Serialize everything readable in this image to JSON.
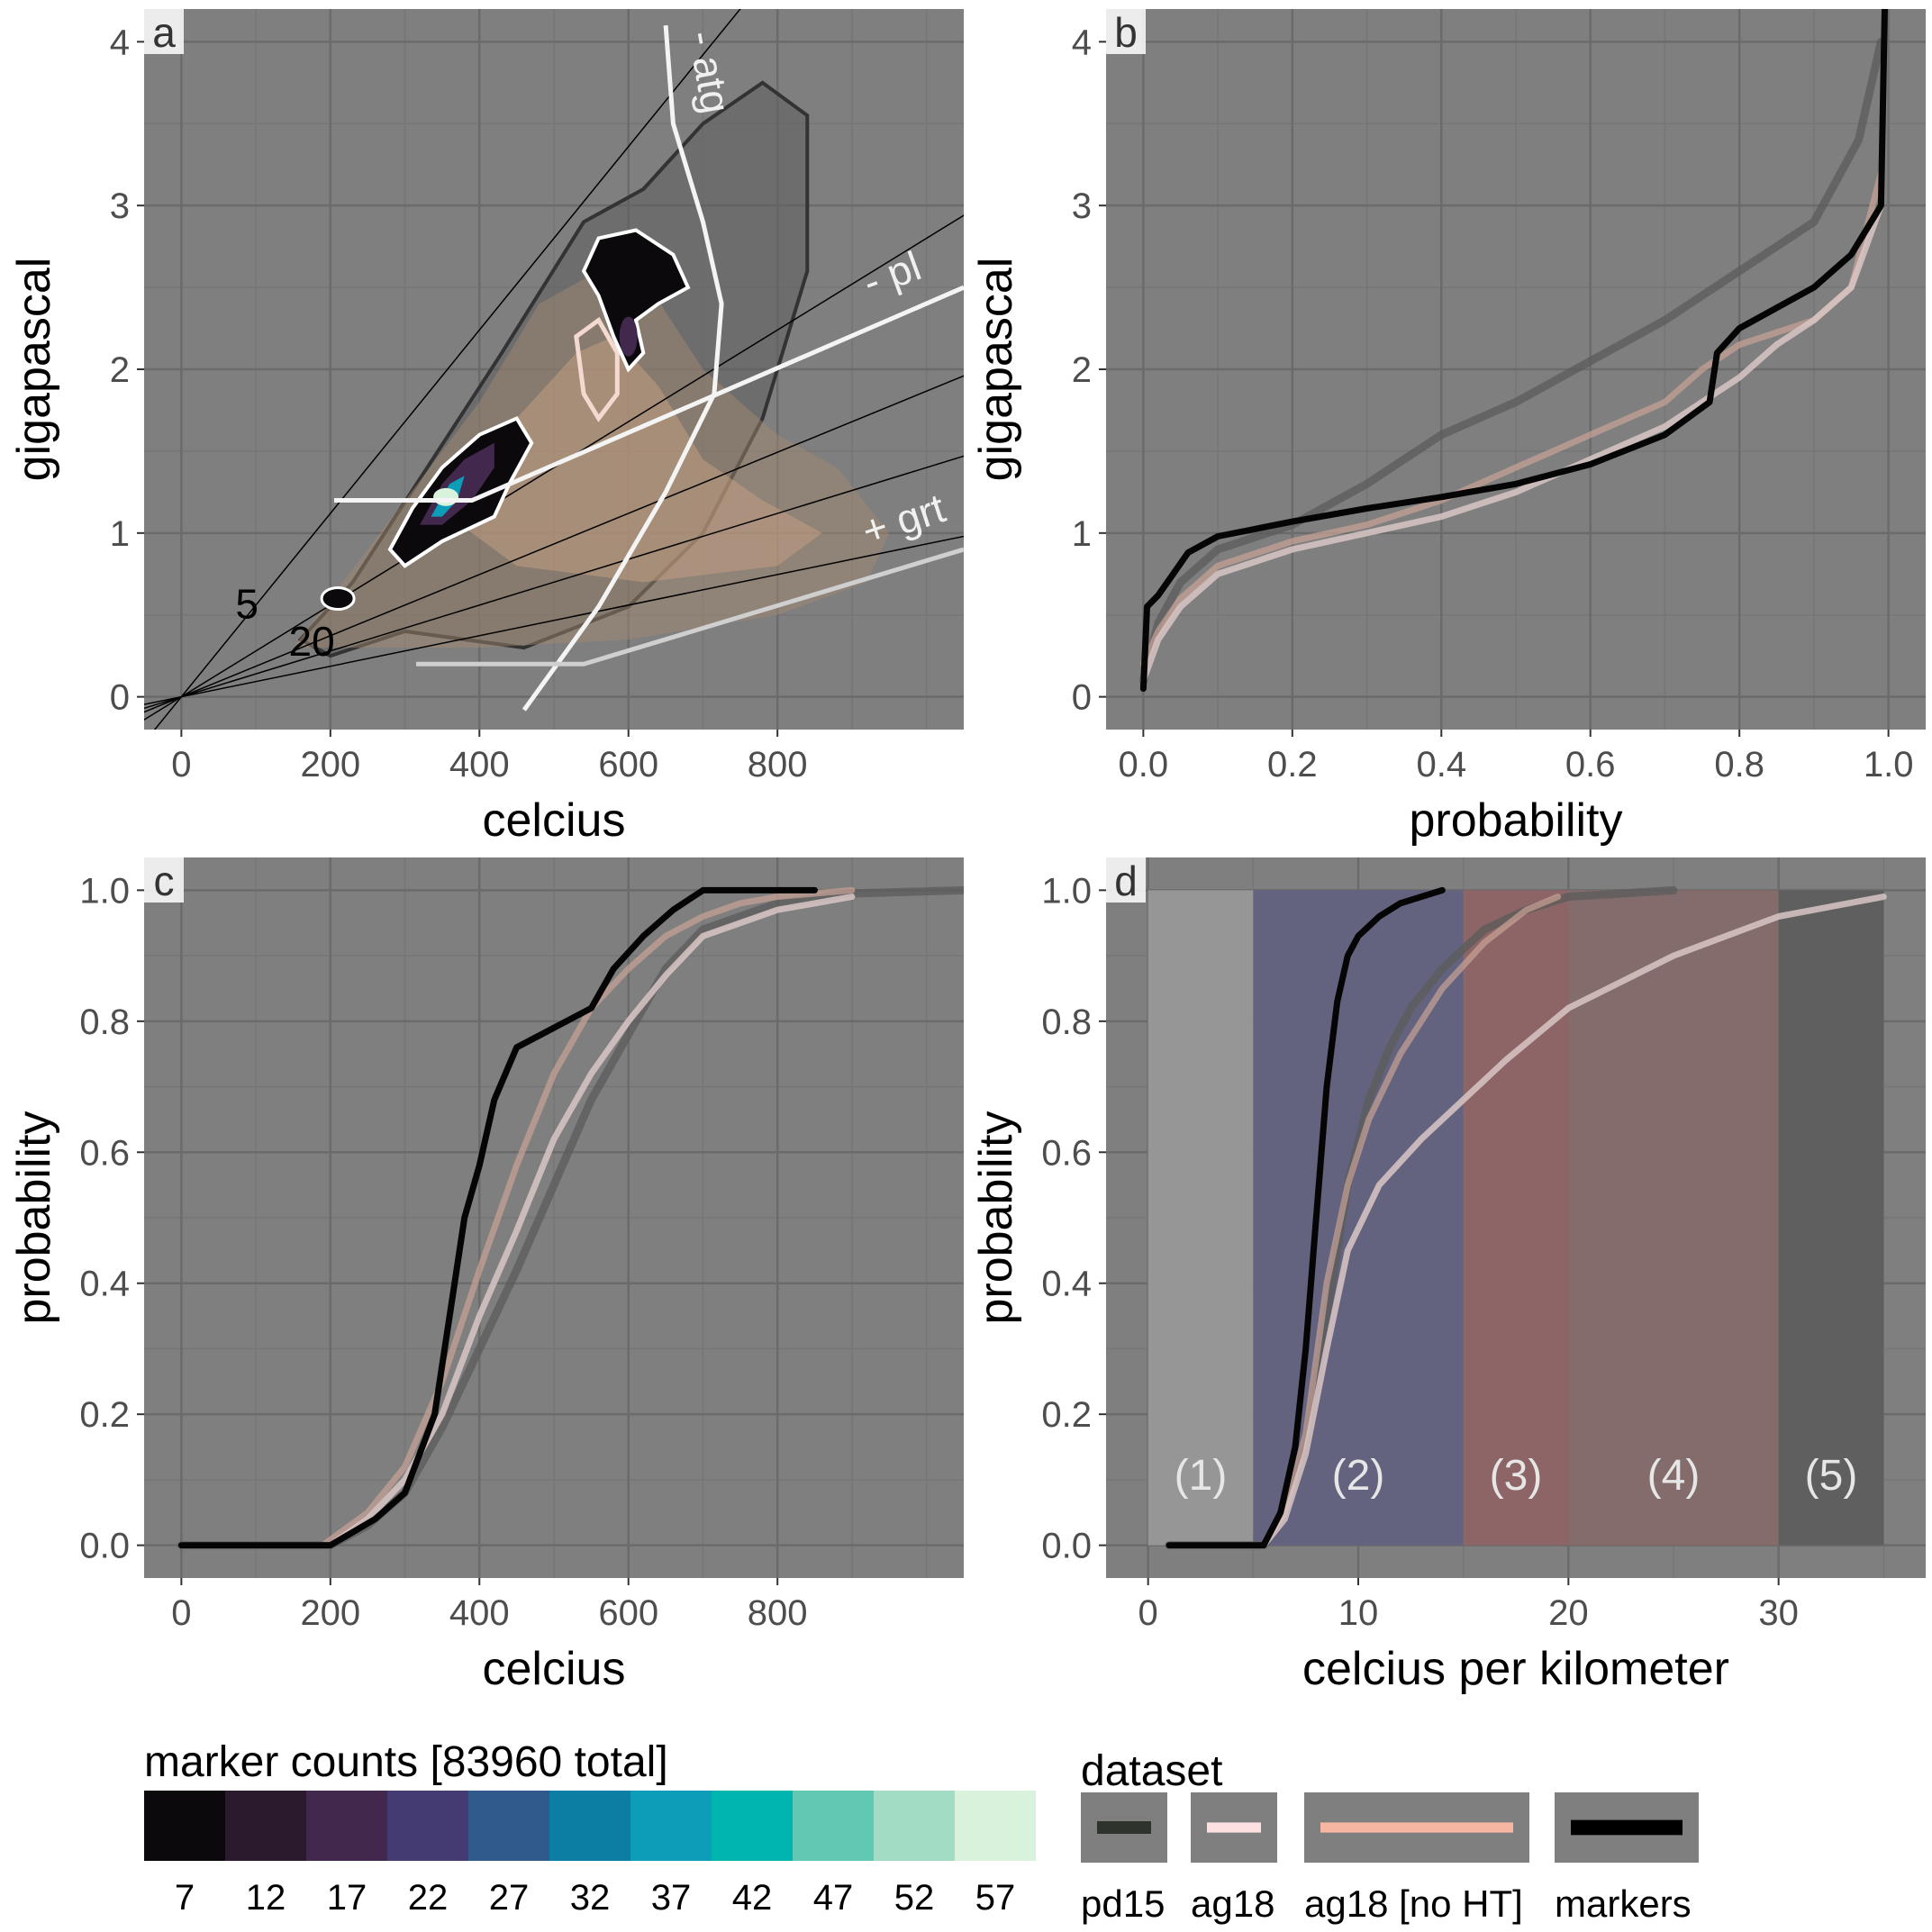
{
  "chart_data": [
    {
      "panel": "a",
      "type": "scatter",
      "xlabel": "celcius",
      "ylabel": "gigapascal",
      "xlim": [
        -50,
        1050
      ],
      "ylim": [
        -0.2,
        4.2
      ],
      "xticks": [
        "0",
        "200",
        "400",
        "600",
        "800"
      ],
      "xtick_values": [
        0,
        200,
        400,
        600,
        800
      ],
      "yticks": [
        "0",
        "1",
        "2",
        "3",
        "4"
      ],
      "ytick_values": [
        0,
        1,
        2,
        3,
        4
      ],
      "annotations": [
        {
          "text": "- atg",
          "x": 690,
          "y": 3.8
        },
        {
          "text": "- pl",
          "x": 960,
          "y": 2.5
        },
        {
          "text": "+ grt",
          "x": 975,
          "y": 1.0
        },
        {
          "text": "5",
          "x": 88,
          "y": 0.48
        },
        {
          "text": "20",
          "x": 175,
          "y": 0.25
        }
      ],
      "gradient_lines_c_per_km": [
        5,
        10,
        15,
        20,
        30
      ],
      "reaction_curves": [
        {
          "name": "- atg",
          "points": [
            [
              460,
              -0.08
            ],
            [
              560,
              0.55
            ],
            [
              650,
              1.25
            ],
            [
              715,
              1.85
            ],
            [
              725,
              2.4
            ],
            [
              700,
              2.9
            ],
            [
              660,
              3.5
            ],
            [
              650,
              4.1
            ]
          ]
        },
        {
          "name": "- pl",
          "points": [
            [
              205,
              1.2
            ],
            [
              390,
              1.2
            ],
            [
              720,
              1.85
            ],
            [
              1050,
              2.5
            ]
          ]
        },
        {
          "name": "+ grt",
          "points": [
            [
              315,
              0.2
            ],
            [
              540,
              0.2
            ],
            [
              1050,
              0.9
            ]
          ]
        }
      ],
      "marker_density_peaks": [
        {
          "x": 360,
          "y": 1.25,
          "count": 57
        },
        {
          "x": 600,
          "y": 2.35,
          "count": 22
        },
        {
          "x": 210,
          "y": 0.6,
          "count": 12
        }
      ]
    },
    {
      "panel": "b",
      "type": "line",
      "xlabel": "probability",
      "ylabel": "gigapascal",
      "xlim": [
        -0.05,
        1.05
      ],
      "ylim": [
        -0.2,
        4.2
      ],
      "xticks": [
        "0.0",
        "0.2",
        "0.4",
        "0.6",
        "0.8",
        "1.0"
      ],
      "xtick_values": [
        0,
        0.2,
        0.4,
        0.6,
        0.8,
        1.0
      ],
      "yticks": [
        "0",
        "1",
        "2",
        "3",
        "4"
      ],
      "ytick_values": [
        0,
        1,
        2,
        3,
        4
      ],
      "series": [
        {
          "key": "pd15",
          "x": [
            0,
            0.02,
            0.05,
            0.1,
            0.2,
            0.3,
            0.4,
            0.5,
            0.6,
            0.7,
            0.8,
            0.9,
            0.96,
            0.99
          ],
          "y": [
            0.1,
            0.45,
            0.7,
            0.9,
            1.05,
            1.3,
            1.6,
            1.8,
            2.05,
            2.3,
            2.6,
            2.9,
            3.4,
            4.0
          ]
        },
        {
          "key": "ag18",
          "x": [
            0,
            0.02,
            0.05,
            0.1,
            0.2,
            0.3,
            0.4,
            0.5,
            0.6,
            0.7,
            0.8,
            0.85,
            0.9,
            0.95,
            0.99
          ],
          "y": [
            0.1,
            0.35,
            0.55,
            0.75,
            0.9,
            1.0,
            1.1,
            1.25,
            1.45,
            1.65,
            1.95,
            2.15,
            2.3,
            2.5,
            3.0
          ]
        },
        {
          "key": "ag18nht",
          "x": [
            0,
            0.02,
            0.05,
            0.1,
            0.2,
            0.3,
            0.4,
            0.5,
            0.6,
            0.7,
            0.75,
            0.8,
            0.9,
            0.95,
            0.99
          ],
          "y": [
            0.2,
            0.4,
            0.6,
            0.8,
            0.95,
            1.05,
            1.2,
            1.4,
            1.6,
            1.8,
            2.0,
            2.15,
            2.3,
            2.5,
            3.2
          ]
        },
        {
          "key": "markers",
          "x": [
            0,
            0.005,
            0.02,
            0.04,
            0.06,
            0.1,
            0.2,
            0.3,
            0.4,
            0.5,
            0.6,
            0.7,
            0.76,
            0.77,
            0.8,
            0.9,
            0.95,
            0.99,
            0.995
          ],
          "y": [
            0.05,
            0.55,
            0.62,
            0.75,
            0.88,
            0.98,
            1.07,
            1.15,
            1.22,
            1.3,
            1.42,
            1.6,
            1.8,
            2.1,
            2.25,
            2.5,
            2.7,
            3.0,
            4.2
          ]
        }
      ]
    },
    {
      "panel": "c",
      "type": "line",
      "xlabel": "celcius",
      "ylabel": "probability",
      "xlim": [
        -50,
        1050
      ],
      "ylim": [
        -0.05,
        1.05
      ],
      "xticks": [
        "0",
        "200",
        "400",
        "600",
        "800"
      ],
      "xtick_values": [
        0,
        200,
        400,
        600,
        800
      ],
      "yticks": [
        "0.0",
        "0.2",
        "0.4",
        "0.6",
        "0.8",
        "1.0"
      ],
      "ytick_values": [
        0,
        0.2,
        0.4,
        0.6,
        0.8,
        1.0
      ],
      "series": [
        {
          "key": "pd15",
          "x": [
            0,
            200,
            250,
            300,
            350,
            400,
            450,
            500,
            550,
            600,
            650,
            700,
            800,
            900,
            1050
          ],
          "y": [
            0,
            0,
            0.03,
            0.08,
            0.18,
            0.3,
            0.42,
            0.55,
            0.68,
            0.78,
            0.88,
            0.94,
            0.98,
            0.995,
            1.0
          ]
        },
        {
          "key": "ag18",
          "x": [
            0,
            200,
            250,
            300,
            350,
            400,
            450,
            500,
            550,
            600,
            650,
            700,
            800,
            900
          ],
          "y": [
            0,
            0,
            0.04,
            0.1,
            0.2,
            0.35,
            0.48,
            0.62,
            0.72,
            0.8,
            0.87,
            0.93,
            0.97,
            0.99
          ]
        },
        {
          "key": "ag18nht",
          "x": [
            0,
            190,
            250,
            300,
            350,
            400,
            450,
            500,
            550,
            600,
            650,
            700,
            750,
            800,
            900
          ],
          "y": [
            0,
            0,
            0.05,
            0.12,
            0.25,
            0.42,
            0.58,
            0.72,
            0.82,
            0.88,
            0.93,
            0.96,
            0.98,
            0.99,
            1.0
          ]
        },
        {
          "key": "markers",
          "x": [
            0,
            200,
            230,
            260,
            300,
            340,
            360,
            380,
            400,
            420,
            450,
            500,
            550,
            580,
            620,
            660,
            700,
            850
          ],
          "y": [
            0,
            0,
            0.02,
            0.04,
            0.08,
            0.2,
            0.35,
            0.5,
            0.58,
            0.68,
            0.76,
            0.79,
            0.82,
            0.88,
            0.93,
            0.97,
            1.0,
            1.0
          ]
        }
      ]
    },
    {
      "panel": "d",
      "type": "line",
      "xlabel": "celcius per kilometer",
      "ylabel": "probability",
      "xlim": [
        -2,
        37
      ],
      "ylim": [
        -0.05,
        1.05
      ],
      "xticks": [
        "0",
        "10",
        "20",
        "30"
      ],
      "xtick_values": [
        0,
        10,
        20,
        30
      ],
      "yticks": [
        "0.0",
        "0.2",
        "0.4",
        "0.6",
        "0.8",
        "1.0"
      ],
      "ytick_values": [
        0,
        0.2,
        0.4,
        0.6,
        0.8,
        1.0
      ],
      "bands": [
        {
          "label": "(1)",
          "x0": 0,
          "x1": 5,
          "color": "#969696"
        },
        {
          "label": "(2)",
          "x0": 5,
          "x1": 15,
          "color": "#63637f"
        },
        {
          "label": "(3)",
          "x0": 15,
          "x1": 20,
          "color": "#8e6566"
        },
        {
          "label": "(4)",
          "x0": 20,
          "x1": 30,
          "color": "#846b6c"
        },
        {
          "label": "(5)",
          "x0": 30,
          "x1": 35,
          "color": "#5f5f5f"
        }
      ],
      "series": [
        {
          "key": "pd15",
          "x": [
            1,
            5.5,
            6.5,
            7.5,
            8.5,
            9.5,
            10.5,
            11.5,
            12.5,
            14,
            16,
            18,
            20,
            25
          ],
          "y": [
            0,
            0,
            0.05,
            0.15,
            0.35,
            0.55,
            0.68,
            0.76,
            0.82,
            0.88,
            0.94,
            0.97,
            0.99,
            1.0
          ]
        },
        {
          "key": "ag18",
          "x": [
            1,
            5.5,
            6.5,
            7.5,
            8.5,
            9.5,
            11,
            13,
            15,
            17,
            20,
            25,
            30,
            35
          ],
          "y": [
            0,
            0,
            0.04,
            0.14,
            0.3,
            0.45,
            0.55,
            0.62,
            0.68,
            0.74,
            0.82,
            0.9,
            0.96,
            0.99
          ]
        },
        {
          "key": "ag18nht",
          "x": [
            1,
            5.5,
            6.5,
            7.5,
            8.5,
            9.5,
            10.5,
            12,
            14,
            16,
            18,
            19.5
          ],
          "y": [
            0,
            0,
            0.05,
            0.17,
            0.4,
            0.55,
            0.65,
            0.75,
            0.85,
            0.92,
            0.97,
            0.99
          ]
        },
        {
          "key": "markers",
          "x": [
            1,
            5.5,
            6.3,
            7,
            7.5,
            8,
            8.5,
            9,
            9.5,
            10,
            11,
            12,
            13,
            14
          ],
          "y": [
            0,
            0,
            0.05,
            0.15,
            0.3,
            0.5,
            0.7,
            0.83,
            0.9,
            0.93,
            0.96,
            0.98,
            0.99,
            1.0
          ]
        }
      ]
    }
  ],
  "colorbar": {
    "title": "marker counts [83960 total]",
    "ticks": [
      "7",
      "12",
      "17",
      "22",
      "27",
      "32",
      "37",
      "42",
      "47",
      "52",
      "57"
    ],
    "colors": [
      "#0b090c",
      "#2b1a2d",
      "#43284d",
      "#453b73",
      "#305a8c",
      "#0c7ea3",
      "#0e9db8",
      "#00b4af",
      "#61c8b4",
      "#a3dcc4",
      "#d8f2dc"
    ]
  },
  "dataset_legend": {
    "title": "dataset",
    "items": [
      {
        "key": "pd15",
        "label": "pd15",
        "color": "#2e332b",
        "width": 10
      },
      {
        "key": "ag18",
        "label": "ag18",
        "color": "#fde0e0",
        "width": 8
      },
      {
        "key": "ag18nht",
        "label": "ag18 [no HT]",
        "color": "#f6b6a2",
        "width": 8
      },
      {
        "key": "markers",
        "label": "markers",
        "color": "#000000",
        "width": 12
      }
    ]
  },
  "colors": {
    "panel_background": "#7f7f7f",
    "grid_major": "#6b6b6b",
    "grid_minor": "#767676",
    "pd15": "#5b5b5b",
    "ag18": "#d9c6c6",
    "ag18nht": "#c9a296",
    "markers": "#050505"
  }
}
